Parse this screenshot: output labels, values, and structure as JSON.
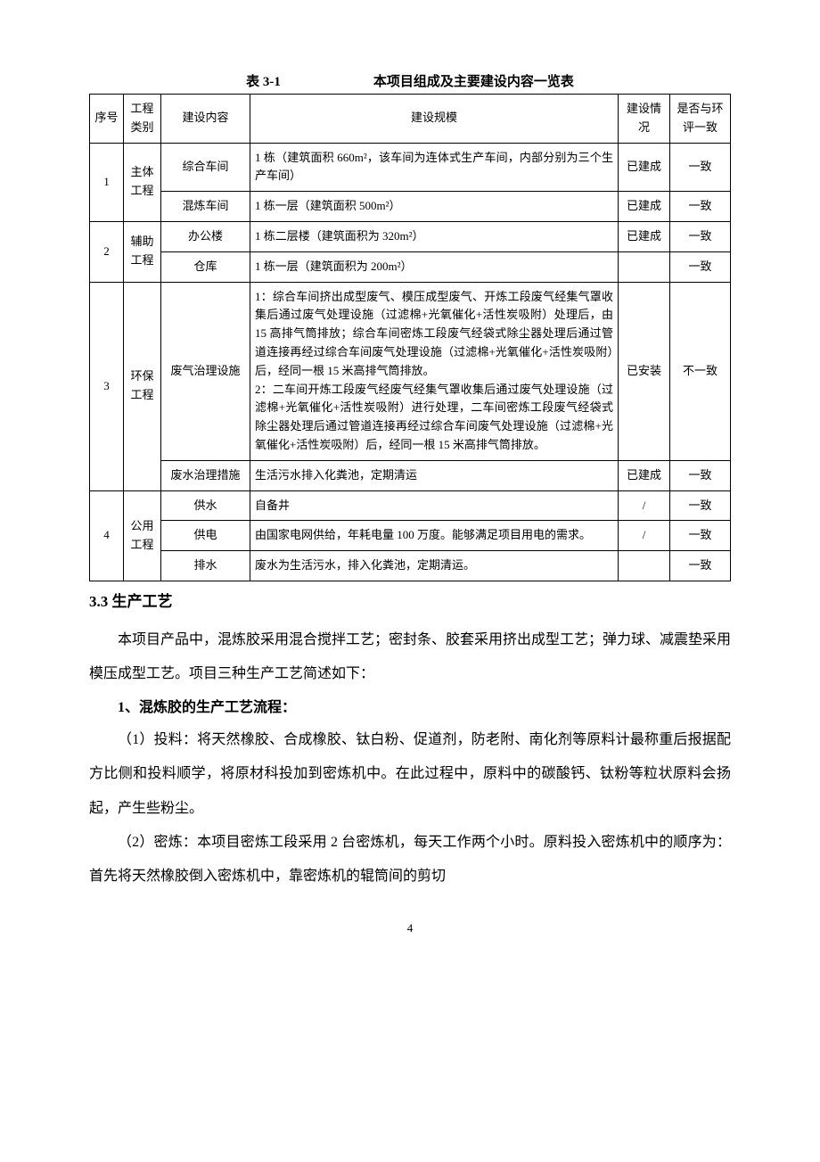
{
  "table_label": "表 3-1",
  "table_title": "本项目组成及主要建设内容一览表",
  "headers": {
    "seq": "序号",
    "category": "工程类别",
    "content": "建设内容",
    "scale": "建设规模",
    "status": "建设情况",
    "consistency": "是否与环评一致"
  },
  "rows": [
    {
      "seq": "1",
      "category": "主体工程",
      "content": "综合车间",
      "scale": "1 栋（建筑面积 660m²，该车间为连体式生产车间，内部分别为三个生产车间）",
      "status": "已建成",
      "consistency": "一致"
    },
    {
      "content": "混炼车间",
      "scale": "1 栋一层（建筑面积 500m²）",
      "status": "已建成",
      "consistency": "一致"
    },
    {
      "seq": "2",
      "category": "辅助工程",
      "content": "办公楼",
      "scale": "1 栋二层楼（建筑面积为 320m²）",
      "status": "已建成",
      "consistency": "一致"
    },
    {
      "content": "仓库",
      "scale": "1 栋一层（建筑面积为 200m²）",
      "status": "",
      "consistency": "一致"
    },
    {
      "seq": "3",
      "category": "环保工程",
      "content": "废气治理设施",
      "scale": "1：综合车间挤出成型废气、模压成型废气、开炼工段废气经集气罩收集后通过废气处理设施（过滤棉+光氧催化+活性炭吸附）处理后，由 15 高排气筒排放；综合车间密炼工段废气经袋式除尘器处理后通过管道连接再经过综合车间废气处理设施（过滤棉+光氧催化+活性炭吸附）后，经同一根 15 米高排气筒排放。\n2：二车间开炼工段废气经废气经集气罩收集后通过废气处理设施（过滤棉+光氧催化+活性炭吸附）进行处理，二车间密炼工段废气经袋式除尘器处理后通过管道连接再经过综合车间废气处理设施（过滤棉+光氧催化+活性炭吸附）后，经同一根 15 米高排气筒排放。",
      "status": "已安装",
      "consistency": "不一致"
    },
    {
      "content": "废水治理措施",
      "scale": "生活污水排入化粪池，定期清运",
      "status": "已建成",
      "consistency": "一致"
    },
    {
      "seq": "4",
      "category": "公用工程",
      "content": "供水",
      "scale": "自备井",
      "status": "/",
      "consistency": "一致"
    },
    {
      "content": "供电",
      "scale": "由国家电网供给，年耗电量 100 万度。能够满足项目用电的需求。",
      "status": "/",
      "consistency": "一致"
    },
    {
      "content": "排水",
      "scale": "废水为生活污水，排入化粪池，定期清运。",
      "status": "",
      "consistency": "一致"
    }
  ],
  "section_heading": "3.3  生产工艺",
  "para1": "本项目产品中，混炼胶采用混合搅拌工艺；密封条、胶套采用挤出成型工艺；弹力球、减震垫采用模压成型工艺。项目三种生产工艺简述如下：",
  "sub_heading": "1、混炼胶的生产工艺流程：",
  "para2": "（1）投料：将天然橡胶、合成橡胶、钛白粉、促道剂，防老附、南化剂等原料计最称重后报据配方比侧和投料顺学，将原材科投加到密炼机中。在此过程中，原料中的碳酸钙、钛粉等粒状原料会扬起，产生些粉尘。",
  "para3": "（2）密炼：本项目密炼工段采用 2 台密炼机，每天工作两个小时。原料投入密炼机中的顺序为：首先将天然橡胶倒入密炼机中，靠密炼机的辊筒间的剪切",
  "page_number": "4"
}
